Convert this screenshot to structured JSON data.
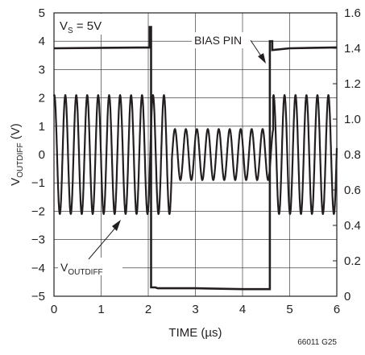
{
  "chart_data": {
    "type": "line",
    "title": "",
    "xlabel": "TIME (µs)",
    "ylabel_main": "V",
    "ylabel_sub": "OUTDIFF",
    "ylabel_unit": " (V)",
    "xlim": [
      0,
      6
    ],
    "ylim_left": [
      -5,
      5
    ],
    "ylim_right": [
      0,
      1.6
    ],
    "grid": true,
    "x_ticks": [
      "0",
      "1",
      "2",
      "3",
      "4",
      "5",
      "6"
    ],
    "y_left_ticks": [
      "5",
      "4",
      "3",
      "2",
      "1",
      "0",
      "−1",
      "−2",
      "−3",
      "−4",
      "−5"
    ],
    "y_right_ticks": [
      "1.6",
      "1.4",
      "1.2",
      "1.0",
      "0.8",
      "0.6",
      "0.4",
      "0.2",
      "0"
    ],
    "condition_main": "V",
    "condition_sub": "S",
    "condition_rest": " = 5V",
    "annotation_bias": "BIAS PIN",
    "annotation_vout_main": "V",
    "annotation_vout_sub": "OUTDIFF",
    "figure_id": "66011 G25",
    "series": [
      {
        "name": "BIAS PIN",
        "axis": "right",
        "points": [
          [
            0,
            1.4
          ],
          [
            2.03,
            1.405
          ],
          [
            2.03,
            1.52
          ],
          [
            2.06,
            1.52
          ],
          [
            2.06,
            0.05
          ],
          [
            2.15,
            0.05
          ],
          [
            2.2,
            0.045
          ],
          [
            3.0,
            0.045
          ],
          [
            4.0,
            0.04
          ],
          [
            4.58,
            0.04
          ],
          [
            4.58,
            1.44
          ],
          [
            4.63,
            1.44
          ],
          [
            4.63,
            1.39
          ],
          [
            5.0,
            1.4
          ],
          [
            6.0,
            1.405
          ]
        ]
      },
      {
        "name": "VOUTDIFF",
        "axis": "left",
        "segments": [
          {
            "x_start": 0,
            "x_end": 2.05,
            "frequency_mhz": 4.3,
            "amplitude_v": 2.1
          },
          {
            "x_start": 2.05,
            "x_end": 2.5,
            "frequency_mhz": 4.3,
            "amplitude_v": 2.1
          },
          {
            "x_start": 2.5,
            "x_end": 4.65,
            "frequency_mhz": 4.3,
            "amplitude_v": 0.9
          },
          {
            "x_start": 4.65,
            "x_end": 6.0,
            "frequency_mhz": 4.3,
            "amplitude_v": 2.1
          }
        ]
      }
    ]
  }
}
